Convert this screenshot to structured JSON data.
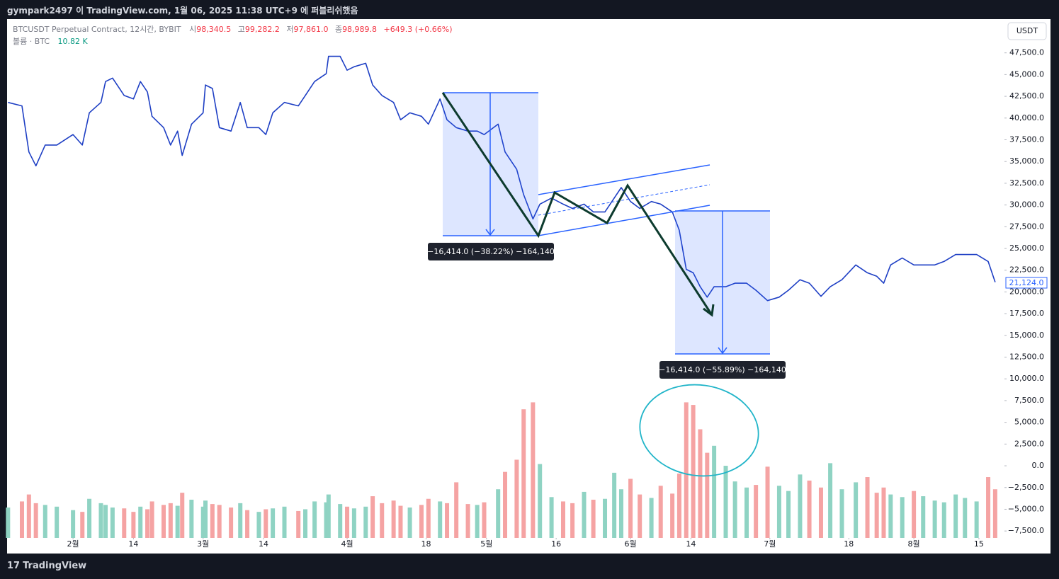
{
  "header": {
    "publisher": "gympark2497 이 TradingView.com, 1월 06, 2025 11:38 UTC+9 에 퍼블리쉬했음"
  },
  "legend": {
    "symbol": "BTCUSDT Perpetual Contract, 12시간, BYBIT",
    "open_label": "시",
    "open": "98,340.5",
    "high_label": "고",
    "high": "99,282.2",
    "low_label": "저",
    "low": "97,861.0",
    "close_label": "종",
    "close": "98,989.8",
    "change": "+649.3 (+0.66%)",
    "volume_label": "볼륨 · BTC",
    "volume": "10.82 K"
  },
  "currency_button": "USDT",
  "last_price_label": "21,124.0",
  "annotations": [
    "−16,414.0 (−38.22%) −164,140",
    "−16,414.0 (−55.89%) −164,140"
  ],
  "footer": {
    "brand": "TradingView"
  },
  "chart_data": {
    "type": "line",
    "x": [
      17,
      20,
      21.5,
      23,
      25,
      27.5,
      31,
      33,
      34.5,
      37,
      38,
      39.5,
      42,
      44,
      45.5,
      47,
      48,
      50.5,
      52,
      53.5,
      54.5,
      56.5,
      59,
      59.5,
      61,
      62.5,
      65,
      67,
      68.5,
      71,
      72.5,
      74,
      76.5,
      79.5,
      81,
      83,
      85.5,
      86,
      88.5,
      90,
      91.5,
      94,
      95.5,
      97.5,
      100,
      101.5,
      103.5,
      106,
      107.5,
      110,
      111.5,
      113.5,
      116,
      118,
      119.5,
      122.5,
      124,
      126.5,
      128,
      130,
      131.5,
      134,
      136.5,
      138.5,
      141,
      143,
      145.5,
      147.5,
      149,
      151,
      153,
      155.5,
      157.5,
      160,
      161.5,
      163,
      164.5,
      166,
      167.5,
      169,
      171.5,
      173.5,
      176,
      178,
      180.5,
      183,
      185,
      187.5,
      189.5,
      192,
      194,
      196.5,
      199.5,
      202,
      204,
      205.5,
      207,
      209.5,
      212,
      214,
      216.5,
      218.5,
      221,
      223,
      225.5,
      228,
      229.5
    ],
    "series": [
      {
        "name": "price",
        "color": "#1e3fc4",
        "values": [
          41800,
          41400,
          36100,
          34500,
          36900,
          36900,
          38100,
          36900,
          40600,
          41800,
          44200,
          44600,
          42600,
          42200,
          44200,
          43000,
          40200,
          38900,
          36900,
          38500,
          35700,
          39300,
          40600,
          43800,
          43400,
          38900,
          38500,
          41800,
          38900,
          38900,
          38100,
          40600,
          41800,
          41400,
          42600,
          44200,
          45100,
          47100,
          47100,
          45500,
          45900,
          46300,
          43800,
          42600,
          41800,
          39800,
          40600,
          40200,
          39300,
          42200,
          39800,
          38900,
          38500,
          38500,
          38100,
          39300,
          36100,
          34100,
          31200,
          28400,
          30100,
          30800,
          30100,
          29600,
          30100,
          29200,
          29200,
          30800,
          32000,
          30400,
          29600,
          30400,
          30100,
          29200,
          27100,
          22600,
          22200,
          20600,
          19400,
          20600,
          20600,
          21000,
          21000,
          20200,
          19000,
          19400,
          20200,
          21400,
          21000,
          19500,
          20600,
          21400,
          23100,
          22200,
          21800,
          21000,
          23100,
          23900,
          23100,
          23100,
          23100,
          23500,
          24300,
          24300,
          24300,
          23500,
          21124
        ]
      },
      {
        "name": "volume",
        "up_color": "#8fd3c3",
        "down_color": "#f5a3a3",
        "values": [
          3500,
          4200,
          5000,
          4000,
          3800,
          3600,
          3200,
          3000,
          4500,
          4000,
          3800,
          3500,
          3400,
          3000,
          3600,
          3300,
          4200,
          3800,
          4000,
          3700,
          5200,
          4400,
          3600,
          4300,
          3900,
          3800,
          3500,
          4000,
          3200,
          3000,
          3300,
          3400,
          3600,
          3100,
          3300,
          4200,
          4100,
          5000,
          3900,
          3600,
          3400,
          3600,
          4800,
          4000,
          4300,
          3700,
          3500,
          3800,
          4500,
          4200,
          4000,
          6400,
          3900,
          3800,
          4100,
          5600,
          7600,
          9000,
          14800,
          15600,
          8500,
          4700,
          4200,
          4000,
          5300,
          4400,
          4500,
          7500,
          5600,
          6800,
          5000,
          4600,
          6000,
          5100,
          7400,
          15600,
          15300,
          12500,
          9800,
          10600,
          8300,
          6500,
          5800,
          6100,
          8200,
          6000,
          5400,
          7300,
          6600,
          5800,
          8600,
          5600,
          6400,
          7000,
          5200,
          5800,
          5000,
          4700,
          5400,
          4800,
          4300,
          4100,
          5000,
          4600,
          4200,
          7000,
          5600
        ]
      }
    ],
    "xlim": [
      16.8,
      231.5
    ],
    "xticks": [
      {
        "value": 31,
        "label": "2월"
      },
      {
        "value": 44,
        "label": "14"
      },
      {
        "value": 59,
        "label": "3월"
      },
      {
        "value": 72,
        "label": "14"
      },
      {
        "value": 90,
        "label": "4월"
      },
      {
        "value": 107,
        "label": "18"
      },
      {
        "value": 120,
        "label": "5월"
      },
      {
        "value": 135,
        "label": "16"
      },
      {
        "value": 151,
        "label": "6월"
      },
      {
        "value": 164,
        "label": "14"
      },
      {
        "value": 181,
        "label": "7월"
      },
      {
        "value": 198,
        "label": "18"
      },
      {
        "value": 212,
        "label": "8월"
      },
      {
        "value": 226,
        "label": "15"
      }
    ],
    "ylim": [
      -8300,
      51300
    ],
    "yticks": [
      {
        "value": -7500,
        "label": "−7,500.0"
      },
      {
        "value": -5000,
        "label": "−5,000.0"
      },
      {
        "value": -2500,
        "label": "−2,500.0"
      },
      {
        "value": 0,
        "label": "0.0"
      },
      {
        "value": 2500,
        "label": "2,500.0"
      },
      {
        "value": 5000,
        "label": "5,000.0"
      },
      {
        "value": 7500,
        "label": "7,500.0"
      },
      {
        "value": 10000,
        "label": "10,000.0"
      },
      {
        "value": 12500,
        "label": "12,500.0"
      },
      {
        "value": 15000,
        "label": "15,000.0"
      },
      {
        "value": 17500,
        "label": "17,500.0"
      },
      {
        "value": 20000,
        "label": "20,000.0"
      },
      {
        "value": 22500,
        "label": "22,500.0"
      },
      {
        "value": 25000,
        "label": "25,000.0"
      },
      {
        "value": 27500,
        "label": "27,500.0"
      },
      {
        "value": 30000,
        "label": "30,000.0"
      },
      {
        "value": 32500,
        "label": "32,500.0"
      },
      {
        "value": 35000,
        "label": "35,000.0"
      },
      {
        "value": 37500,
        "label": "37,500.0"
      },
      {
        "value": 40000,
        "label": "40,000.0"
      },
      {
        "value": 42500,
        "label": "42,500.0"
      },
      {
        "value": 45000,
        "label": "45,000.0"
      },
      {
        "value": 47500,
        "label": "47,500.0"
      }
    ],
    "grid": false
  }
}
